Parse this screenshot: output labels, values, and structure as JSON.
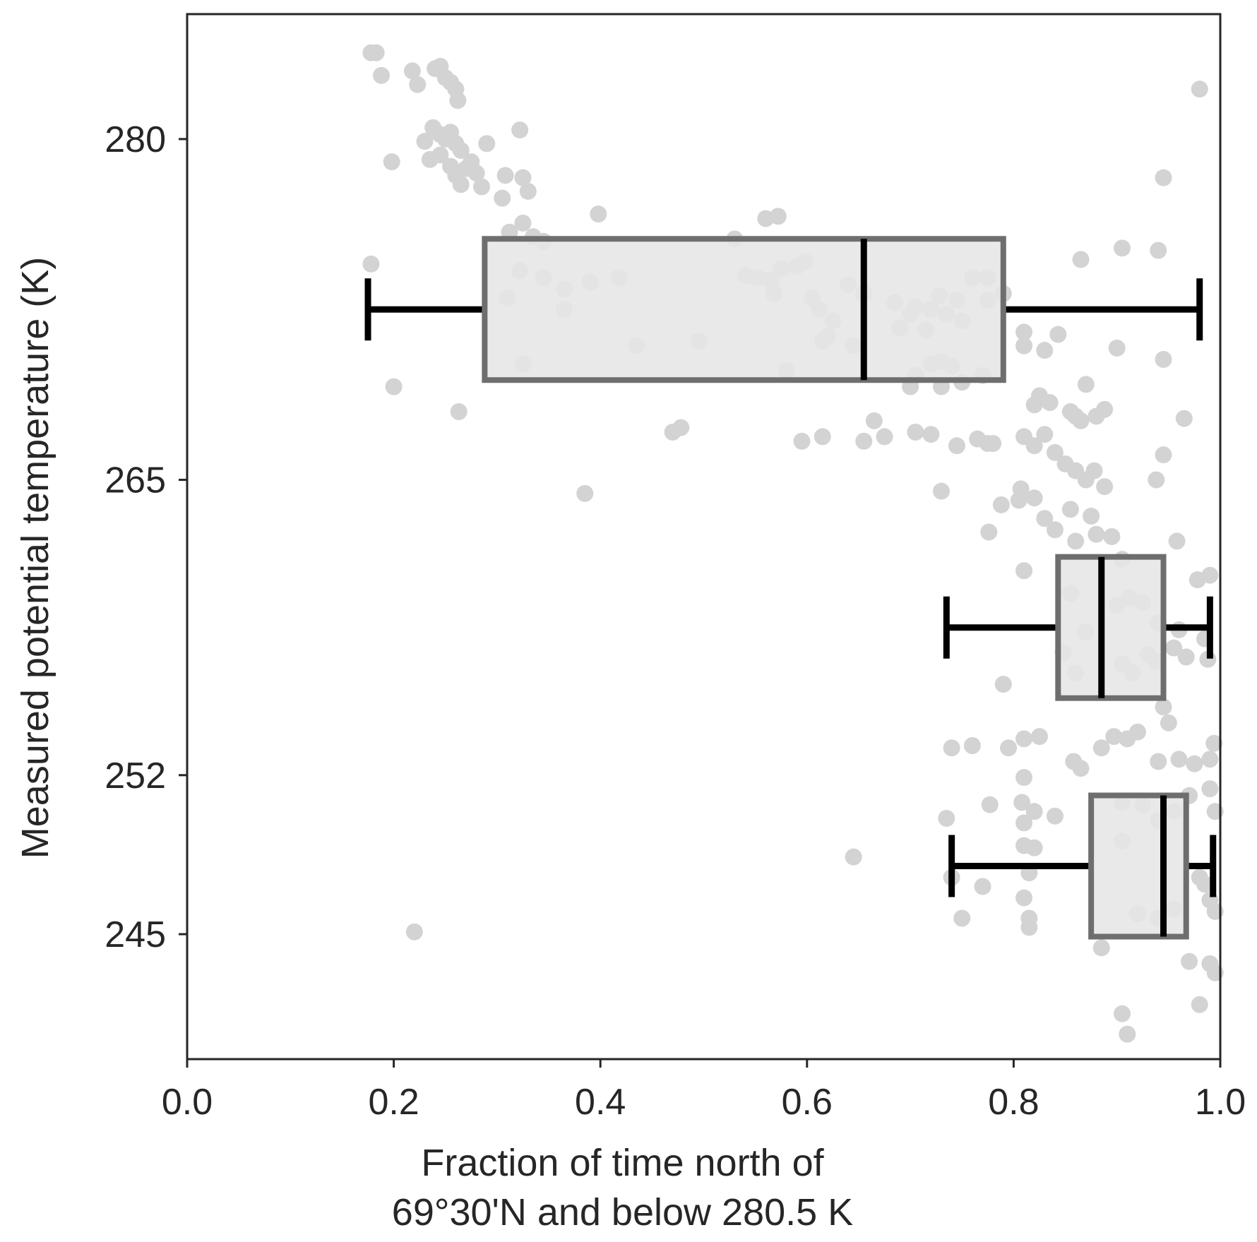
{
  "chart_data": {
    "type": "box",
    "orientation": "horizontal",
    "xlabel": [
      "Fraction of time north of",
      "69°30'N and below 280.5 K"
    ],
    "ylabel": "Measured potential temperature (K)",
    "xlim": [
      0.0,
      1.0
    ],
    "ylim": [
      239.5,
      285.5
    ],
    "xticks": [
      0.0,
      0.2,
      0.4,
      0.6,
      0.8,
      1.0
    ],
    "xtick_labels": [
      "0.0",
      "0.2",
      "0.4",
      "0.6",
      "0.8",
      "1.0"
    ],
    "yticks": [
      245,
      252,
      265,
      280
    ],
    "ytick_labels": [
      "245",
      "252",
      "265",
      "280"
    ],
    "grid": false,
    "colors": {
      "points": "#d3d3d3",
      "box_fill": "#e6e6e6",
      "box_edge": "#6e6e6e",
      "whisker": "#000000",
      "axis": "#262626"
    },
    "boxes": [
      {
        "position": 272.5,
        "q1": 0.288,
        "median": 0.655,
        "q3": 0.79,
        "whisker_low": 0.175,
        "whisker_high": 0.98
      },
      {
        "position": 258.5,
        "q1": 0.843,
        "median": 0.885,
        "q3": 0.945,
        "whisker_low": 0.735,
        "whisker_high": 0.99
      },
      {
        "position": 248.0,
        "q1": 0.875,
        "median": 0.945,
        "q3": 0.967,
        "whisker_low": 0.74,
        "whisker_high": 0.993
      }
    ],
    "points": [
      [
        0.178,
        283.8
      ],
      [
        0.183,
        283.8
      ],
      [
        0.188,
        282.8
      ],
      [
        0.218,
        283.0
      ],
      [
        0.223,
        282.4
      ],
      [
        0.24,
        283.1
      ],
      [
        0.245,
        283.2
      ],
      [
        0.25,
        282.7
      ],
      [
        0.255,
        282.5
      ],
      [
        0.26,
        282.2
      ],
      [
        0.262,
        281.7
      ],
      [
        0.238,
        280.5
      ],
      [
        0.245,
        280.2
      ],
      [
        0.25,
        280.0
      ],
      [
        0.255,
        280.3
      ],
      [
        0.26,
        279.8
      ],
      [
        0.265,
        279.5
      ],
      [
        0.23,
        279.9
      ],
      [
        0.235,
        279.1
      ],
      [
        0.245,
        279.3
      ],
      [
        0.255,
        278.8
      ],
      [
        0.26,
        278.4
      ],
      [
        0.265,
        278.0
      ],
      [
        0.27,
        278.7
      ],
      [
        0.275,
        279.0
      ],
      [
        0.28,
        278.5
      ],
      [
        0.285,
        277.9
      ],
      [
        0.29,
        279.8
      ],
      [
        0.198,
        279.0
      ],
      [
        0.322,
        280.4
      ],
      [
        0.308,
        278.4
      ],
      [
        0.325,
        278.3
      ],
      [
        0.33,
        277.7
      ],
      [
        0.305,
        277.4
      ],
      [
        0.312,
        275.9
      ],
      [
        0.325,
        276.3
      ],
      [
        0.335,
        275.7
      ],
      [
        0.345,
        275.5
      ],
      [
        0.398,
        276.7
      ],
      [
        0.53,
        275.6
      ],
      [
        0.56,
        276.5
      ],
      [
        0.572,
        276.6
      ],
      [
        0.178,
        274.5
      ],
      [
        0.322,
        274.2
      ],
      [
        0.345,
        273.9
      ],
      [
        0.365,
        273.4
      ],
      [
        0.39,
        273.7
      ],
      [
        0.418,
        273.9
      ],
      [
        0.31,
        273.0
      ],
      [
        0.365,
        272.5
      ],
      [
        0.541,
        274.0
      ],
      [
        0.552,
        273.9
      ],
      [
        0.565,
        273.8
      ],
      [
        0.575,
        274.3
      ],
      [
        0.59,
        274.4
      ],
      [
        0.598,
        274.6
      ],
      [
        0.568,
        273.2
      ],
      [
        0.605,
        273.0
      ],
      [
        0.612,
        272.5
      ],
      [
        0.625,
        272.0
      ],
      [
        0.62,
        271.3
      ],
      [
        0.615,
        271.1
      ],
      [
        0.64,
        273.6
      ],
      [
        0.655,
        273.2
      ],
      [
        0.685,
        272.8
      ],
      [
        0.69,
        271.7
      ],
      [
        0.7,
        272.3
      ],
      [
        0.705,
        272.6
      ],
      [
        0.72,
        272.5
      ],
      [
        0.728,
        273.1
      ],
      [
        0.735,
        272.3
      ],
      [
        0.745,
        272.9
      ],
      [
        0.75,
        272.0
      ],
      [
        0.76,
        273.9
      ],
      [
        0.775,
        273.9
      ],
      [
        0.775,
        272.9
      ],
      [
        0.79,
        273.2
      ],
      [
        0.715,
        271.6
      ],
      [
        0.435,
        270.9
      ],
      [
        0.495,
        271.1
      ],
      [
        0.645,
        270.9
      ],
      [
        0.325,
        270.1
      ],
      [
        0.58,
        269.8
      ],
      [
        0.705,
        269.6
      ],
      [
        0.72,
        270.1
      ],
      [
        0.73,
        270.2
      ],
      [
        0.74,
        270.0
      ],
      [
        0.7,
        269.1
      ],
      [
        0.73,
        269.1
      ],
      [
        0.75,
        269.3
      ],
      [
        0.77,
        269.6
      ],
      [
        0.2,
        269.1
      ],
      [
        0.81,
        271.5
      ],
      [
        0.81,
        270.9
      ],
      [
        0.83,
        270.7
      ],
      [
        0.843,
        271.4
      ],
      [
        0.87,
        269.2
      ],
      [
        0.82,
        268.3
      ],
      [
        0.825,
        268.7
      ],
      [
        0.835,
        268.4
      ],
      [
        0.855,
        268.0
      ],
      [
        0.865,
        267.6
      ],
      [
        0.88,
        267.8
      ],
      [
        0.888,
        268.1
      ],
      [
        0.86,
        267.8
      ],
      [
        0.9,
        270.8
      ],
      [
        0.945,
        270.3
      ],
      [
        0.865,
        274.7
      ],
      [
        0.905,
        275.2
      ],
      [
        0.94,
        275.1
      ],
      [
        0.945,
        278.3
      ],
      [
        0.98,
        282.2
      ],
      [
        0.263,
        268.0
      ],
      [
        0.47,
        267.1
      ],
      [
        0.478,
        267.3
      ],
      [
        0.385,
        264.4
      ],
      [
        0.595,
        266.7
      ],
      [
        0.615,
        266.9
      ],
      [
        0.655,
        266.7
      ],
      [
        0.665,
        267.6
      ],
      [
        0.675,
        266.9
      ],
      [
        0.705,
        267.1
      ],
      [
        0.72,
        267.0
      ],
      [
        0.745,
        266.5
      ],
      [
        0.765,
        266.8
      ],
      [
        0.775,
        266.6
      ],
      [
        0.78,
        266.6
      ],
      [
        0.73,
        264.5
      ],
      [
        0.788,
        263.9
      ],
      [
        0.776,
        262.7
      ],
      [
        0.807,
        264.6
      ],
      [
        0.81,
        266.9
      ],
      [
        0.82,
        266.5
      ],
      [
        0.83,
        267.0
      ],
      [
        0.84,
        266.2
      ],
      [
        0.85,
        265.7
      ],
      [
        0.86,
        265.4
      ],
      [
        0.87,
        265.0
      ],
      [
        0.878,
        265.4
      ],
      [
        0.888,
        264.7
      ],
      [
        0.805,
        264.1
      ],
      [
        0.82,
        264.2
      ],
      [
        0.83,
        263.3
      ],
      [
        0.84,
        262.8
      ],
      [
        0.855,
        263.7
      ],
      [
        0.875,
        263.4
      ],
      [
        0.895,
        262.5
      ],
      [
        0.86,
        262.3
      ],
      [
        0.88,
        262.6
      ],
      [
        0.81,
        261.0
      ],
      [
        0.905,
        261.5
      ],
      [
        0.938,
        265.0
      ],
      [
        0.945,
        266.1
      ],
      [
        0.958,
        262.3
      ],
      [
        0.965,
        267.7
      ],
      [
        0.978,
        260.6
      ],
      [
        0.99,
        260.8
      ],
      [
        0.855,
        260.0
      ],
      [
        0.9,
        259.5
      ],
      [
        0.912,
        259.8
      ],
      [
        0.925,
        259.6
      ],
      [
        0.94,
        258.7
      ],
      [
        0.87,
        258.3
      ],
      [
        0.96,
        258.4
      ],
      [
        0.985,
        258.0
      ],
      [
        0.955,
        257.6
      ],
      [
        0.848,
        257.4
      ],
      [
        0.905,
        256.9
      ],
      [
        0.915,
        256.5
      ],
      [
        0.93,
        257.3
      ],
      [
        0.86,
        256.5
      ],
      [
        0.938,
        257.0
      ],
      [
        0.967,
        257.2
      ],
      [
        0.988,
        257.1
      ],
      [
        0.79,
        256.0
      ],
      [
        0.945,
        255.0
      ],
      [
        0.95,
        254.3
      ],
      [
        0.74,
        253.2
      ],
      [
        0.76,
        253.3
      ],
      [
        0.795,
        253.2
      ],
      [
        0.81,
        253.6
      ],
      [
        0.825,
        253.7
      ],
      [
        0.858,
        252.6
      ],
      [
        0.865,
        252.3
      ],
      [
        0.885,
        253.2
      ],
      [
        0.897,
        253.7
      ],
      [
        0.91,
        253.6
      ],
      [
        0.92,
        253.9
      ],
      [
        0.94,
        252.6
      ],
      [
        0.96,
        252.7
      ],
      [
        0.975,
        252.5
      ],
      [
        0.99,
        252.7
      ],
      [
        0.994,
        253.4
      ],
      [
        0.81,
        251.9
      ],
      [
        0.905,
        250.8
      ],
      [
        0.925,
        250.7
      ],
      [
        0.94,
        250.0
      ],
      [
        0.955,
        250.4
      ],
      [
        0.97,
        251.1
      ],
      [
        0.99,
        251.4
      ],
      [
        0.995,
        250.4
      ],
      [
        0.777,
        250.7
      ],
      [
        0.808,
        250.8
      ],
      [
        0.82,
        250.4
      ],
      [
        0.81,
        249.9
      ],
      [
        0.84,
        250.2
      ],
      [
        0.735,
        250.1
      ],
      [
        0.905,
        249.1
      ],
      [
        0.81,
        248.9
      ],
      [
        0.82,
        248.8
      ],
      [
        0.645,
        248.4
      ],
      [
        0.74,
        247.5
      ],
      [
        0.815,
        247.7
      ],
      [
        0.77,
        247.1
      ],
      [
        0.81,
        246.6
      ],
      [
        0.98,
        247.5
      ],
      [
        0.985,
        247.2
      ],
      [
        0.99,
        246.5
      ],
      [
        0.995,
        246.0
      ],
      [
        0.75,
        245.7
      ],
      [
        0.815,
        245.7
      ],
      [
        0.815,
        245.3
      ],
      [
        0.92,
        245.9
      ],
      [
        0.94,
        245.7
      ],
      [
        0.955,
        246.1
      ],
      [
        0.885,
        244.4
      ],
      [
        0.97,
        243.8
      ],
      [
        0.99,
        243.7
      ],
      [
        0.995,
        243.3
      ],
      [
        0.98,
        241.9
      ],
      [
        0.905,
        241.5
      ],
      [
        0.91,
        240.6
      ],
      [
        0.22,
        245.1
      ]
    ]
  }
}
